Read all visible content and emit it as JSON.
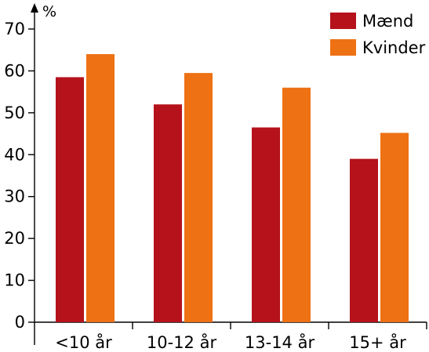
{
  "chart_data": {
    "type": "bar",
    "title": "",
    "xlabel": "",
    "ylabel": "%",
    "ylim": [
      0,
      70
    ],
    "yticks": [
      0,
      10,
      20,
      30,
      40,
      50,
      60,
      70
    ],
    "categories": [
      "<10 år",
      "10-12 år",
      "13-14 år",
      "15+ år"
    ],
    "series": [
      {
        "name": "Mænd",
        "color": "#b5121b",
        "values": [
          58.5,
          52,
          46.5,
          39
        ]
      },
      {
        "name": "Kvinder",
        "color": "#ee7114",
        "values": [
          64,
          59.5,
          56,
          45.2
        ]
      }
    ],
    "grid": false,
    "legend_position": "top-right"
  }
}
